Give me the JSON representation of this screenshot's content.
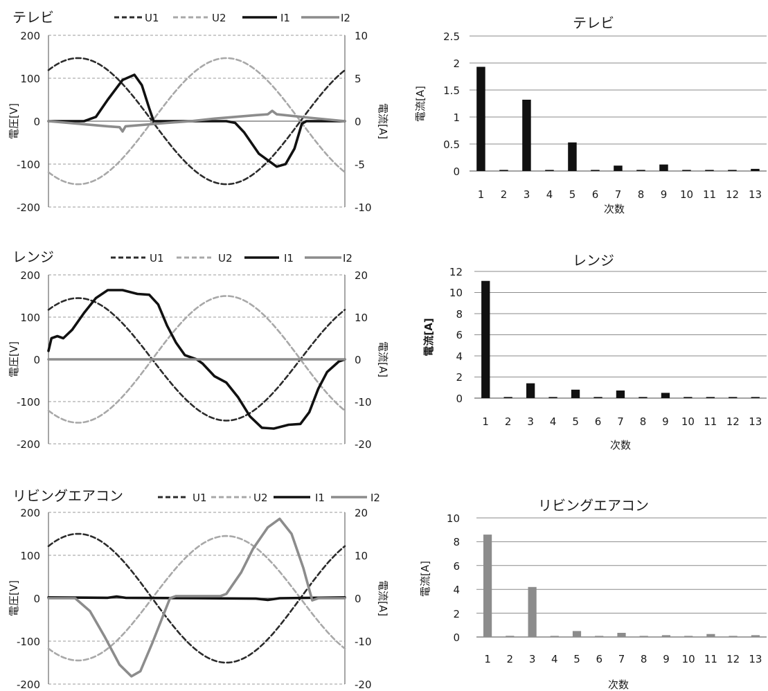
{
  "chart_data": [
    {
      "type": "line",
      "panel": "left",
      "title": "テレビ",
      "ylabel": "電圧[V]",
      "y2label": "電流[A]",
      "ylim": [
        -200,
        200
      ],
      "y2lim": [
        -10,
        10
      ],
      "yticks": [
        "200",
        "100",
        "0",
        "-100",
        "-200"
      ],
      "y2ticks": [
        "10",
        "5",
        "0",
        "-5",
        "-10"
      ],
      "series": [
        {
          "name": "U1",
          "axis": "left",
          "style": "dash",
          "color": "#2b2b2b",
          "kind": "sine",
          "amp": 147,
          "phase": 0.15
        },
        {
          "name": "U2",
          "axis": "left",
          "style": "dash",
          "color": "#a8a8a8",
          "kind": "sine",
          "amp": -147,
          "phase": 0.15
        },
        {
          "name": "I1",
          "axis": "right",
          "style": "solid",
          "color": "#111111",
          "kind": "points",
          "points": [
            [
              0,
              0
            ],
            [
              0.12,
              0
            ],
            [
              0.16,
              0.5
            ],
            [
              0.2,
              2.5
            ],
            [
              0.25,
              4.8
            ],
            [
              0.29,
              5.4
            ],
            [
              0.315,
              4.2
            ],
            [
              0.34,
              1.5
            ],
            [
              0.355,
              0
            ],
            [
              0.52,
              0
            ],
            [
              0.6,
              0
            ],
            [
              0.63,
              -0.2
            ],
            [
              0.66,
              -1.3
            ],
            [
              0.71,
              -3.8
            ],
            [
              0.77,
              -5.3
            ],
            [
              0.8,
              -5.0
            ],
            [
              0.83,
              -3.2
            ],
            [
              0.855,
              -0.3
            ],
            [
              0.87,
              0
            ],
            [
              1,
              0
            ]
          ]
        },
        {
          "name": "I2",
          "axis": "right",
          "style": "solid",
          "color": "#8c8c8c",
          "kind": "points",
          "points": [
            [
              0,
              0
            ],
            [
              0.1,
              -0.3
            ],
            [
              0.2,
              -0.6
            ],
            [
              0.24,
              -0.7
            ],
            [
              0.25,
              -1.2
            ],
            [
              0.26,
              -0.6
            ],
            [
              0.4,
              -0.2
            ],
            [
              0.48,
              0
            ],
            [
              0.56,
              0.3
            ],
            [
              0.7,
              0.7
            ],
            [
              0.74,
              0.8
            ],
            [
              0.755,
              1.2
            ],
            [
              0.77,
              0.8
            ],
            [
              0.88,
              0.4
            ],
            [
              1,
              0
            ]
          ]
        }
      ]
    },
    {
      "type": "bar",
      "panel": "right",
      "title": "テレビ",
      "xlabel": "次数",
      "ylabel": "電流[A]",
      "ylim": [
        0,
        2.5
      ],
      "yticks": [
        "0",
        "0.5",
        "1",
        "1.5",
        "2",
        "2.5"
      ],
      "categories": [
        "1",
        "2",
        "3",
        "4",
        "5",
        "6",
        "7",
        "8",
        "9",
        "10",
        "11",
        "12",
        "13"
      ],
      "values": [
        1.93,
        0.01,
        1.32,
        0.01,
        0.53,
        0.01,
        0.1,
        0.01,
        0.12,
        0.01,
        0.02,
        0.01,
        0.04
      ],
      "color": "#111111"
    },
    {
      "type": "line",
      "panel": "left",
      "title": "レンジ",
      "ylabel": "電圧[V]",
      "y2label": "電流[A]",
      "ylim": [
        -200,
        200
      ],
      "y2lim": [
        -20,
        20
      ],
      "yticks": [
        "200",
        "100",
        "0",
        "-100",
        "-200"
      ],
      "y2ticks": [
        "20",
        "10",
        "0",
        "-10",
        "-20"
      ],
      "series": [
        {
          "name": "U1",
          "axis": "left",
          "style": "dash",
          "color": "#2b2b2b",
          "kind": "sine",
          "amp": 145,
          "phase": 0.15
        },
        {
          "name": "U2",
          "axis": "left",
          "style": "dash",
          "color": "#a8a8a8",
          "kind": "sine",
          "amp": -150,
          "phase": 0.15
        },
        {
          "name": "I1",
          "axis": "right",
          "style": "solid",
          "color": "#111111",
          "kind": "points",
          "points": [
            [
              0,
              2
            ],
            [
              0.01,
              5
            ],
            [
              0.03,
              5.5
            ],
            [
              0.05,
              5
            ],
            [
              0.08,
              7
            ],
            [
              0.12,
              11
            ],
            [
              0.16,
              14.5
            ],
            [
              0.2,
              16.4
            ],
            [
              0.25,
              16.4
            ],
            [
              0.3,
              15.5
            ],
            [
              0.34,
              15.3
            ],
            [
              0.37,
              13
            ],
            [
              0.4,
              8
            ],
            [
              0.43,
              4
            ],
            [
              0.46,
              1
            ],
            [
              0.5,
              0
            ],
            [
              0.52,
              -1
            ],
            [
              0.56,
              -4
            ],
            [
              0.6,
              -5.5
            ],
            [
              0.64,
              -9
            ],
            [
              0.68,
              -13.5
            ],
            [
              0.72,
              -16.2
            ],
            [
              0.76,
              -16.4
            ],
            [
              0.81,
              -15.5
            ],
            [
              0.85,
              -15.3
            ],
            [
              0.88,
              -12.5
            ],
            [
              0.91,
              -7
            ],
            [
              0.94,
              -3
            ],
            [
              0.98,
              -0.5
            ],
            [
              1,
              0
            ]
          ]
        },
        {
          "name": "I2",
          "axis": "right",
          "style": "solid",
          "color": "#8c8c8c",
          "kind": "points",
          "points": [
            [
              0,
              0
            ],
            [
              1,
              0
            ]
          ]
        }
      ]
    },
    {
      "type": "bar",
      "panel": "right",
      "title": "レンジ",
      "xlabel": "次数",
      "ylabel": "電流[A]",
      "ylim": [
        0,
        12
      ],
      "yticks": [
        "0",
        "2",
        "4",
        "6",
        "8",
        "10",
        "12"
      ],
      "categories": [
        "1",
        "2",
        "3",
        "4",
        "5",
        "6",
        "7",
        "8",
        "9",
        "10",
        "11",
        "12",
        "13"
      ],
      "values": [
        11.1,
        0.05,
        1.4,
        0.05,
        0.8,
        0.05,
        0.72,
        0.05,
        0.5,
        0.05,
        0.1,
        0.03,
        0.0
      ],
      "color": "#111111"
    },
    {
      "type": "line",
      "panel": "left",
      "title": "リビングエアコン",
      "ylabel": "電圧[V]",
      "y2label": "電流[A]",
      "ylim": [
        -200,
        200
      ],
      "y2lim": [
        -20,
        20
      ],
      "yticks": [
        "200",
        "100",
        "0",
        "-100",
        "-200"
      ],
      "y2ticks": [
        "20",
        "10",
        "0",
        "-10",
        "-20"
      ],
      "series": [
        {
          "name": "U1",
          "axis": "left",
          "style": "dash",
          "color": "#2b2b2b",
          "kind": "sine",
          "amp": 150,
          "phase": 0.15
        },
        {
          "name": "U2",
          "axis": "left",
          "style": "dash",
          "color": "#a8a8a8",
          "kind": "sine",
          "amp": -145,
          "phase": 0.15
        },
        {
          "name": "I1",
          "axis": "right",
          "style": "solid",
          "color": "#111111",
          "kind": "points",
          "points": [
            [
              0,
              0.2
            ],
            [
              0.2,
              0.1
            ],
            [
              0.23,
              0.4
            ],
            [
              0.26,
              0.1
            ],
            [
              0.5,
              0
            ],
            [
              0.7,
              -0.1
            ],
            [
              0.74,
              -0.4
            ],
            [
              0.78,
              0
            ],
            [
              1,
              0.2
            ]
          ]
        },
        {
          "name": "I2",
          "axis": "right",
          "style": "solid",
          "color": "#8c8c8c",
          "kind": "points",
          "points": [
            [
              0,
              0
            ],
            [
              0.09,
              0
            ],
            [
              0.14,
              -3
            ],
            [
              0.19,
              -9
            ],
            [
              0.24,
              -15.5
            ],
            [
              0.28,
              -18.2
            ],
            [
              0.31,
              -17
            ],
            [
              0.35,
              -10.5
            ],
            [
              0.39,
              -3.5
            ],
            [
              0.41,
              0
            ],
            [
              0.43,
              0.5
            ],
            [
              0.58,
              0.5
            ],
            [
              0.6,
              1
            ],
            [
              0.65,
              6
            ],
            [
              0.69,
              11.5
            ],
            [
              0.74,
              16.5
            ],
            [
              0.78,
              18.5
            ],
            [
              0.82,
              15
            ],
            [
              0.86,
              7
            ],
            [
              0.89,
              -0.5
            ],
            [
              0.91,
              0
            ],
            [
              1,
              0
            ]
          ]
        }
      ]
    },
    {
      "type": "bar",
      "panel": "right",
      "title": "リビングエアコン",
      "xlabel": "次数",
      "ylabel": "電流[A]",
      "ylim": [
        0,
        10
      ],
      "yticks": [
        "0",
        "2",
        "4",
        "6",
        "8",
        "10"
      ],
      "categories": [
        "1",
        "2",
        "3",
        "4",
        "5",
        "6",
        "7",
        "8",
        "9",
        "10",
        "11",
        "12",
        "13"
      ],
      "values": [
        8.6,
        0.1,
        4.2,
        0.0,
        0.5,
        0.0,
        0.35,
        0.0,
        0.15,
        0.0,
        0.25,
        0.0,
        0.15
      ],
      "color": "#8c8c8c"
    }
  ]
}
